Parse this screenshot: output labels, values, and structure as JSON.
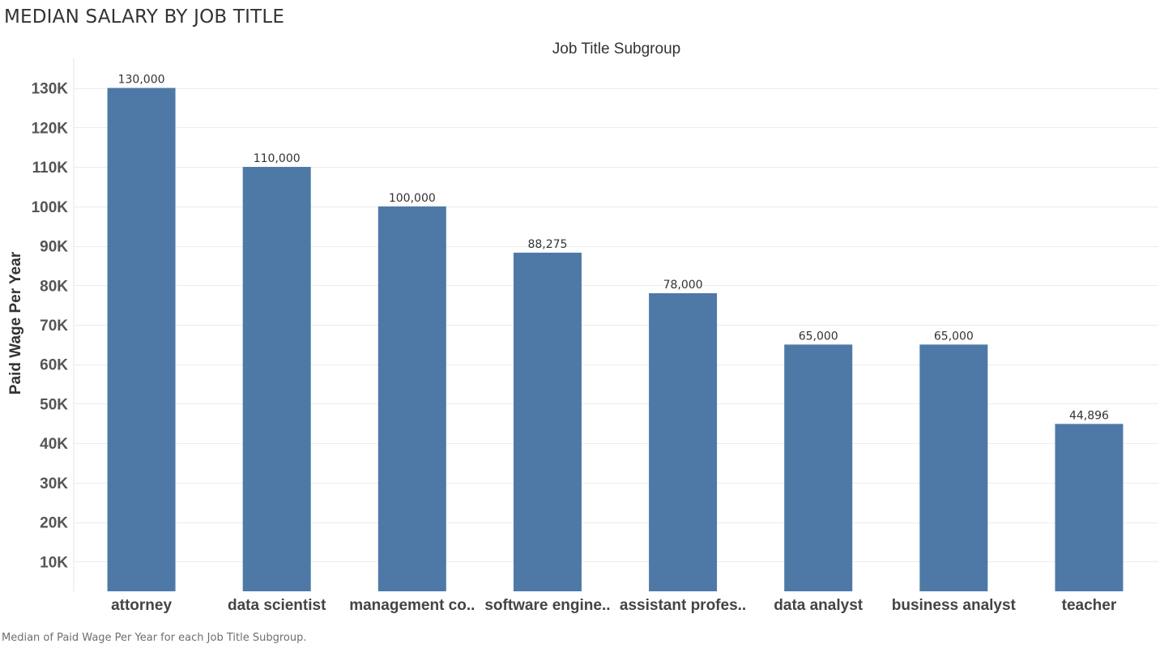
{
  "title": "MEDIAN SALARY BY JOB TITLE",
  "caption": "Median of Paid Wage Per Year for each Job Title Subgroup.",
  "colors": {
    "bar": "#4e79a7",
    "gridline": "#ececec",
    "axis_text": "#555555"
  },
  "chart_data": {
    "type": "bar",
    "title": "Job Title Subgroup",
    "xlabel": "Job Title Subgroup",
    "ylabel": "Paid Wage Per Year",
    "categories": [
      "attorney",
      "data scientist",
      "management co..",
      "software engine..",
      "assistant profes..",
      "data analyst",
      "business analyst",
      "teacher"
    ],
    "values": [
      130000,
      110000,
      100000,
      88275,
      78000,
      65000,
      65000,
      44896
    ],
    "value_labels": [
      "130,000",
      "110,000",
      "100,000",
      "88,275",
      "78,000",
      "65,000",
      "65,000",
      "44,896"
    ],
    "yticks": [
      10000,
      20000,
      30000,
      40000,
      50000,
      60000,
      70000,
      80000,
      90000,
      100000,
      110000,
      120000,
      130000
    ],
    "ytick_labels": [
      "10K",
      "20K",
      "30K",
      "40K",
      "50K",
      "60K",
      "70K",
      "80K",
      "90K",
      "100K",
      "110K",
      "120K",
      "130K"
    ],
    "ylim": [
      2500,
      137500
    ],
    "grid": true,
    "legend": "none"
  }
}
